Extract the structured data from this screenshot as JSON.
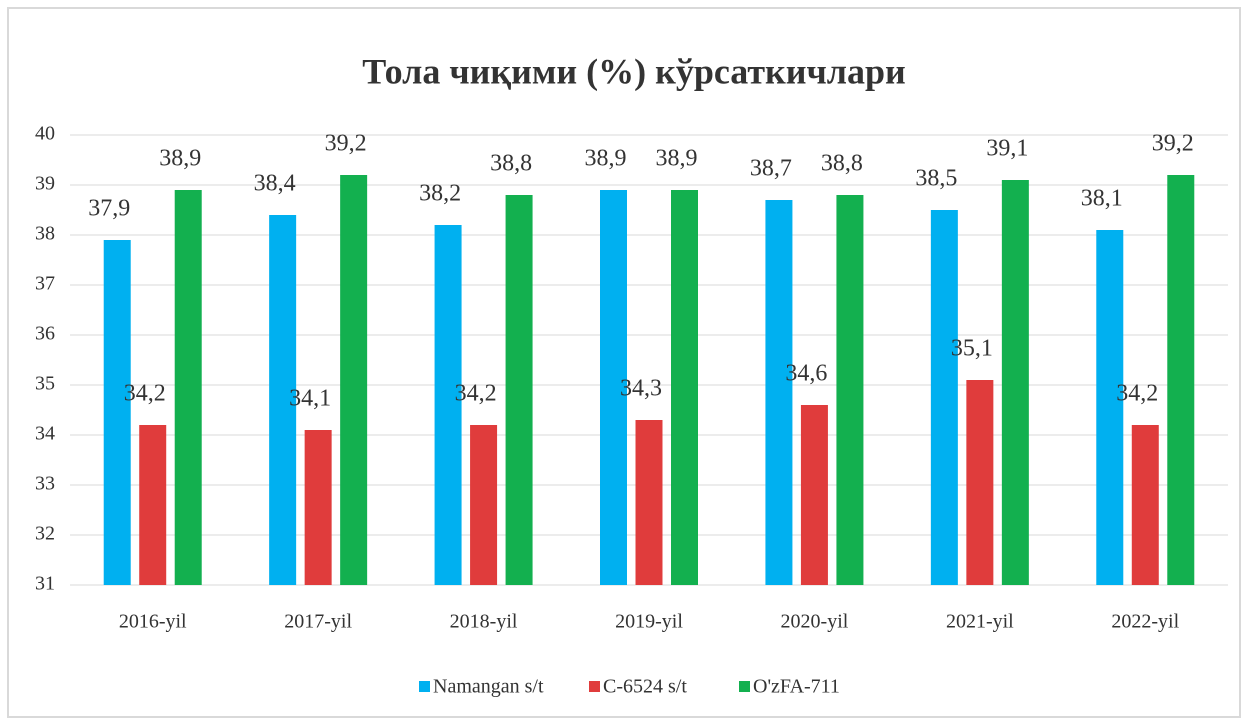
{
  "chart_data": {
    "type": "bar",
    "title": "Тола чиқими (%) кўрсаткичлари",
    "categories": [
      "2016-yil",
      "2017-yil",
      "2018-yil",
      "2019-yil",
      "2020-yil",
      "2021-yil",
      "2022-yil"
    ],
    "series": [
      {
        "name": "Namangan s/t",
        "color": "#00b0f0",
        "values": [
          37.9,
          38.4,
          38.2,
          38.9,
          38.7,
          38.5,
          38.1
        ],
        "value_labels": [
          "37,9",
          "38,4",
          "38,2",
          "38,9",
          "38,7",
          "38,5",
          "38,1"
        ]
      },
      {
        "name": "C-6524 s/t",
        "color": "#e03c3c",
        "values": [
          34.2,
          34.1,
          34.2,
          34.3,
          34.6,
          35.1,
          34.2
        ],
        "value_labels": [
          "34,2",
          "34,1",
          "34,2",
          "34,3",
          "34,6",
          "35,1",
          "34,2"
        ]
      },
      {
        "name": "O'zFA-711",
        "color": "#13b04f",
        "values": [
          38.9,
          39.2,
          38.8,
          38.9,
          38.8,
          39.1,
          39.2
        ],
        "value_labels": [
          "38,9",
          "39,2",
          "38,8",
          "38,9",
          "38,8",
          "39,1",
          "39,2"
        ]
      }
    ],
    "ylim": [
      31,
      40
    ],
    "yticks": [
      31,
      32,
      33,
      34,
      35,
      36,
      37,
      38,
      39,
      40
    ],
    "grid": true,
    "legend": "bottom"
  }
}
